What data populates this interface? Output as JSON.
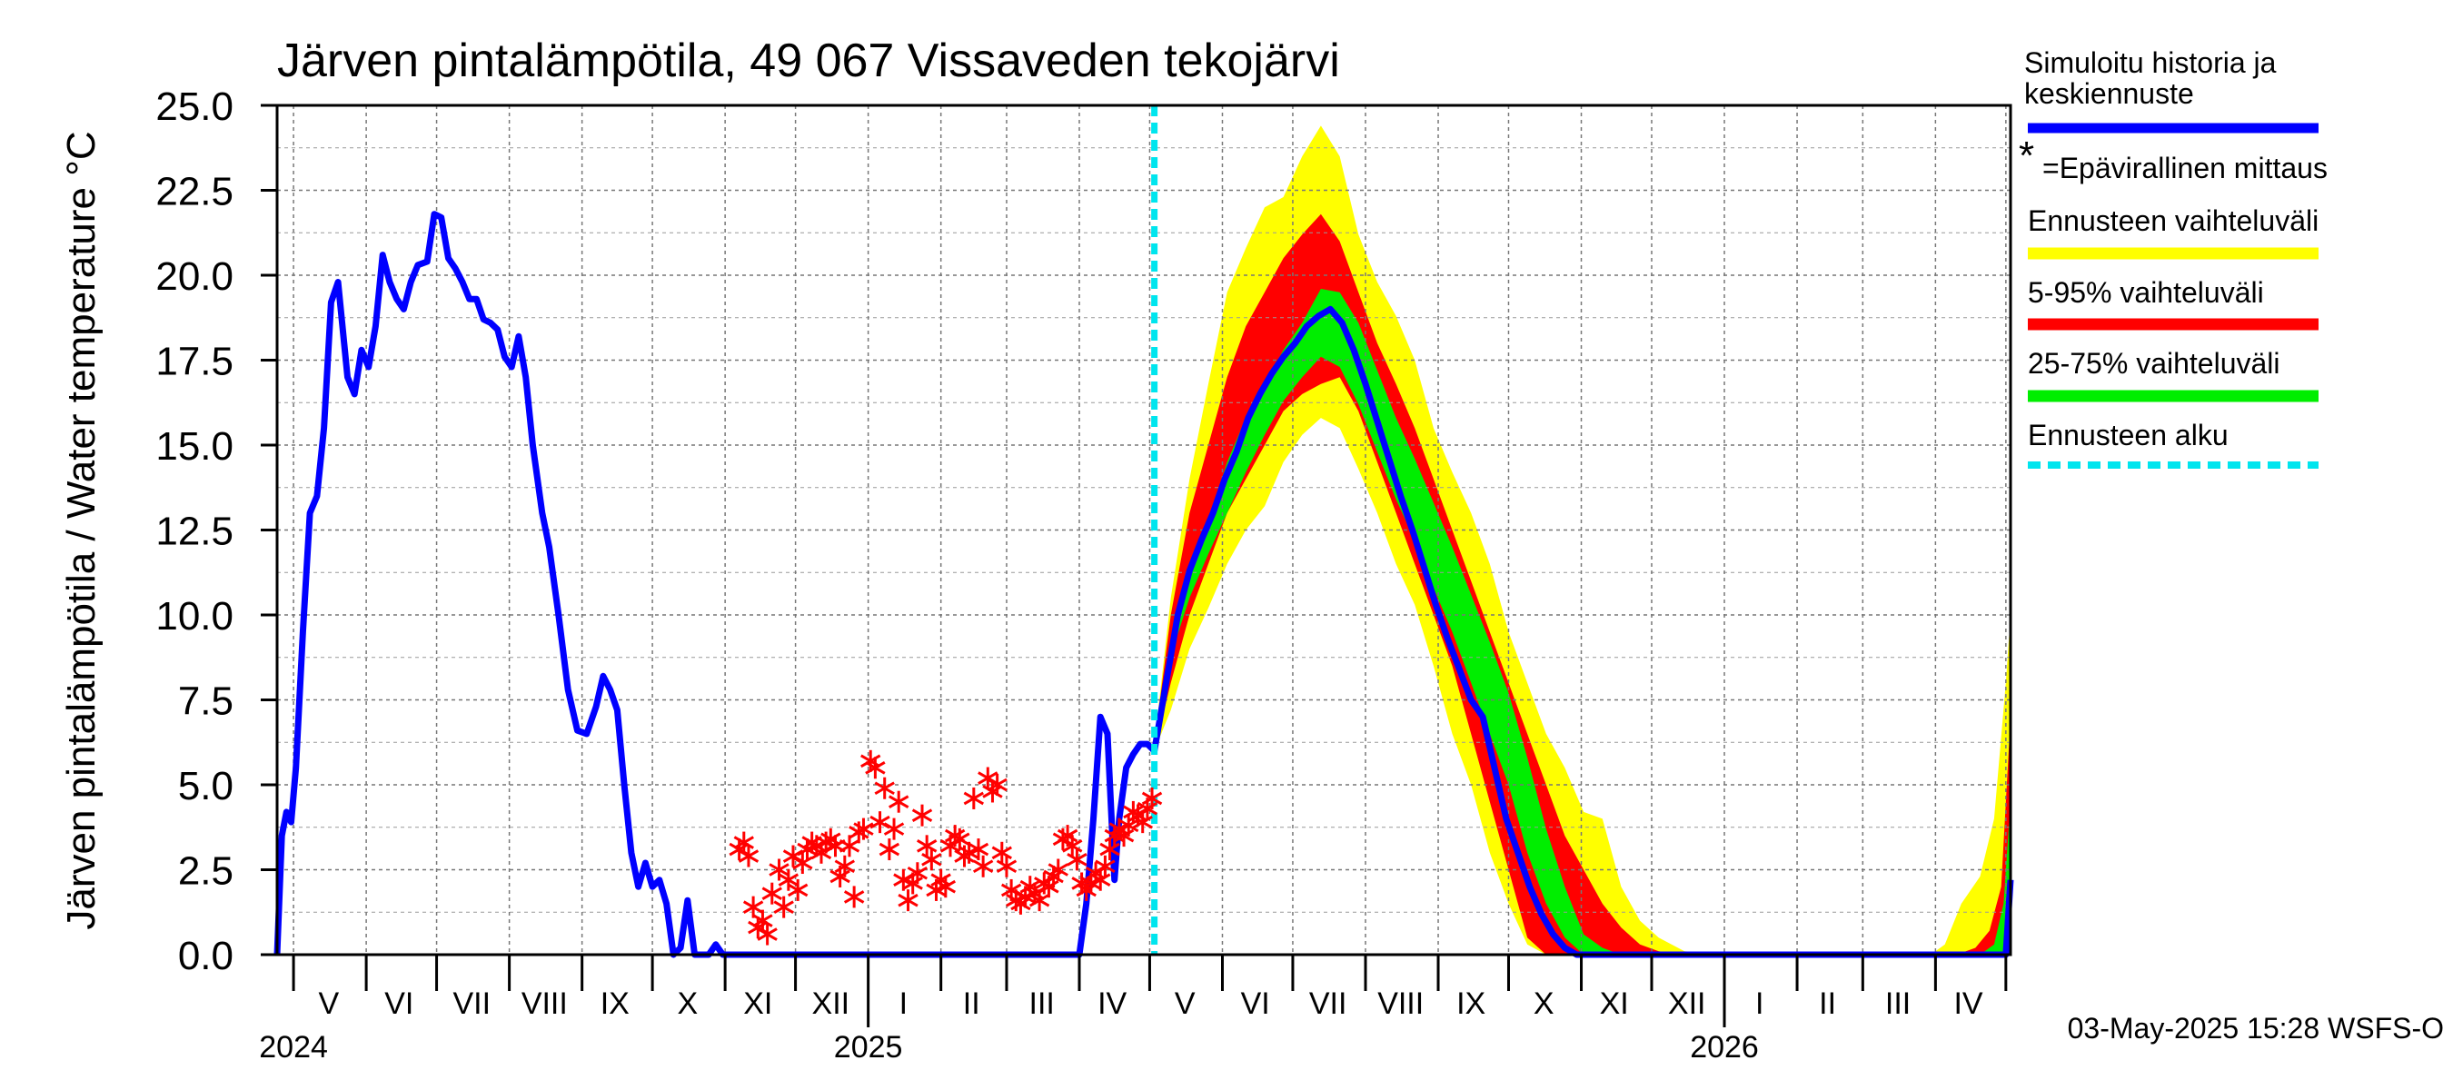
{
  "chart_data": {
    "type": "area",
    "title": "Järven pintalämpötila, 49 067 Vissaveden tekojärvi",
    "ylabel": "Järven pintalämpötila / Water temperature °C",
    "ylim": [
      0,
      25
    ],
    "yticks": [
      "0.0",
      "2.5",
      "5.0",
      "7.5",
      "10.0",
      "12.5",
      "15.0",
      "17.5",
      "20.0",
      "22.5",
      "25.0"
    ],
    "x_range": [
      "2024-04-24",
      "2026-05-03"
    ],
    "month_labels": [
      {
        "label": "V",
        "date": "2024-05-16"
      },
      {
        "label": "VI",
        "date": "2024-06-15"
      },
      {
        "label": "VII",
        "date": "2024-07-16"
      },
      {
        "label": "VIII",
        "date": "2024-08-16"
      },
      {
        "label": "IX",
        "date": "2024-09-15"
      },
      {
        "label": "X",
        "date": "2024-10-16"
      },
      {
        "label": "XI",
        "date": "2024-11-15"
      },
      {
        "label": "XII",
        "date": "2024-12-16"
      },
      {
        "label": "I",
        "date": "2025-01-16"
      },
      {
        "label": "II",
        "date": "2025-02-14"
      },
      {
        "label": "III",
        "date": "2025-03-16"
      },
      {
        "label": "IV",
        "date": "2025-04-15"
      },
      {
        "label": "V",
        "date": "2025-05-16"
      },
      {
        "label": "VI",
        "date": "2025-06-15"
      },
      {
        "label": "VII",
        "date": "2025-07-16"
      },
      {
        "label": "VIII",
        "date": "2025-08-16"
      },
      {
        "label": "IX",
        "date": "2025-09-15"
      },
      {
        "label": "X",
        "date": "2025-10-16"
      },
      {
        "label": "XI",
        "date": "2025-11-15"
      },
      {
        "label": "XII",
        "date": "2025-12-16"
      },
      {
        "label": "I",
        "date": "2026-01-16"
      },
      {
        "label": "II",
        "date": "2026-02-14"
      },
      {
        "label": "III",
        "date": "2026-03-16"
      },
      {
        "label": "IV",
        "date": "2026-04-15"
      }
    ],
    "year_labels": [
      {
        "label": "2024",
        "date": "2024-05-01"
      },
      {
        "label": "2025",
        "date": "2025-01-01"
      },
      {
        "label": "2026",
        "date": "2026-01-01"
      }
    ],
    "forecast_start": "2025-05-03",
    "grid": true,
    "legend_position": "right",
    "legend": {
      "history": "Simuloitu historia ja keskiennuste",
      "measured": "=Epävirallinen mittaus",
      "full_range": "Ennusteen vaihteluväli",
      "p5_95": "5-95% vaihteluväli",
      "p25_75": "25-75% vaihteluväli",
      "forecast_start": "Ennusteen alku"
    },
    "colors": {
      "history": "#0000ff",
      "measured": "#ff0000",
      "full_range": "#ffff00",
      "p5_95": "#ff0000",
      "p25_75": "#00ee00",
      "forecast_start": "#00e5ee"
    },
    "footer": "03-May-2025 15:28 WSFS-O",
    "series": [
      {
        "key": "history",
        "x": [
          "2024-04-24",
          "2024-04-26",
          "2024-04-28",
          "2024-04-30",
          "2024-05-02",
          "2024-05-05",
          "2024-05-08",
          "2024-05-11",
          "2024-05-14",
          "2024-05-17",
          "2024-05-20",
          "2024-05-24",
          "2024-05-27",
          "2024-05-30",
          "2024-06-02",
          "2024-06-05",
          "2024-06-08",
          "2024-06-11",
          "2024-06-14",
          "2024-06-17",
          "2024-06-20",
          "2024-06-23",
          "2024-06-27",
          "2024-06-30",
          "2024-07-03",
          "2024-07-06",
          "2024-07-09",
          "2024-07-12",
          "2024-07-15",
          "2024-07-18",
          "2024-07-21",
          "2024-07-24",
          "2024-07-27",
          "2024-07-30",
          "2024-08-02",
          "2024-08-05",
          "2024-08-08",
          "2024-08-11",
          "2024-08-15",
          "2024-08-18",
          "2024-08-22",
          "2024-08-26",
          "2024-08-30",
          "2024-09-03",
          "2024-09-07",
          "2024-09-10",
          "2024-09-13",
          "2024-09-16",
          "2024-09-19",
          "2024-09-22",
          "2024-09-25",
          "2024-09-28",
          "2024-10-01",
          "2024-10-04",
          "2024-10-07",
          "2024-10-10",
          "2024-10-13",
          "2024-10-16",
          "2024-10-19",
          "2024-10-22",
          "2024-10-25",
          "2024-10-28",
          "2024-10-31",
          "2024-11-03",
          "2024-11-06",
          "2024-11-08",
          "2024-11-11",
          "2024-11-14",
          "2024-11-17",
          "2024-11-20",
          "2024-11-23",
          "2024-11-26",
          "2024-12-01",
          "2024-12-05",
          "2024-12-09",
          "2024-12-12",
          "2024-12-16",
          "2024-12-20",
          "2024-12-25",
          "2025-01-01",
          "2025-01-05",
          "2025-01-10",
          "2025-01-20",
          "2025-02-15",
          "2025-03-15",
          "2025-04-01",
          "2025-04-04",
          "2025-04-07",
          "2025-04-10",
          "2025-04-13",
          "2025-04-16",
          "2025-04-18",
          "2025-04-21",
          "2025-04-24",
          "2025-04-27",
          "2025-04-30",
          "2025-05-03"
        ],
        "y": [
          0.0,
          3.5,
          4.2,
          3.9,
          5.5,
          9.5,
          13.0,
          13.5,
          15.5,
          19.2,
          19.8,
          17.0,
          16.5,
          17.8,
          17.3,
          18.5,
          20.6,
          19.8,
          19.3,
          19.0,
          19.8,
          20.3,
          20.4,
          21.8,
          21.7,
          20.5,
          20.2,
          19.8,
          19.3,
          19.3,
          18.7,
          18.6,
          18.4,
          17.6,
          17.3,
          18.2,
          17.0,
          15.0,
          13.0,
          12.0,
          10.0,
          7.8,
          6.6,
          6.5,
          7.3,
          8.2,
          7.8,
          7.2,
          5.0,
          3.0,
          2.0,
          2.7,
          2.0,
          2.2,
          1.5,
          0.0,
          0.2,
          1.6,
          0.0,
          0.0,
          0.0,
          0.3,
          0.0,
          0.0,
          0.0,
          0.0,
          0.0,
          0.0,
          0.0,
          0.0,
          0.0,
          0.0,
          0.0,
          0.0,
          0.0,
          0.0,
          0.0,
          0.0,
          0.0,
          0.0,
          0.0,
          0.0,
          0.0,
          0.0,
          0.0,
          0.0,
          1.5,
          4.0,
          7.0,
          6.5,
          2.2,
          4.0,
          5.5,
          5.9,
          6.2,
          6.2,
          6.0
        ]
      },
      {
        "key": "median",
        "x": [
          "2025-05-03",
          "2025-05-08",
          "2025-05-13",
          "2025-05-18",
          "2025-05-23",
          "2025-05-28",
          "2025-06-02",
          "2025-06-07",
          "2025-06-12",
          "2025-06-17",
          "2025-06-22",
          "2025-06-27",
          "2025-07-02",
          "2025-07-07",
          "2025-07-12",
          "2025-07-17",
          "2025-07-22",
          "2025-07-27",
          "2025-08-01",
          "2025-08-06",
          "2025-08-11",
          "2025-08-16",
          "2025-08-21",
          "2025-08-26",
          "2025-08-31",
          "2025-09-05",
          "2025-09-10",
          "2025-09-15",
          "2025-09-20",
          "2025-09-25",
          "2025-09-30",
          "2025-10-05",
          "2025-10-10",
          "2025-10-15",
          "2025-10-20",
          "2025-10-25",
          "2025-10-30",
          "2025-11-05",
          "2025-11-10",
          "2025-11-20",
          "2025-12-01",
          "2026-01-01",
          "2026-02-01",
          "2026-03-01",
          "2026-04-01",
          "2026-04-15",
          "2026-04-25",
          "2026-05-01",
          "2026-05-03"
        ],
        "y": [
          6.0,
          8.0,
          10.0,
          11.3,
          12.2,
          13.0,
          14.0,
          14.8,
          15.8,
          16.5,
          17.1,
          17.6,
          18.0,
          18.5,
          18.8,
          19.0,
          18.6,
          17.8,
          16.8,
          15.7,
          14.6,
          13.5,
          12.5,
          11.4,
          10.3,
          9.3,
          8.4,
          7.5,
          7.0,
          5.5,
          4.0,
          3.0,
          2.0,
          1.2,
          0.6,
          0.2,
          0.0,
          0.0,
          0.0,
          0.0,
          0.0,
          0.0,
          0.0,
          0.0,
          0.0,
          0.0,
          0.0,
          0.0,
          2.2
        ]
      }
    ],
    "bands": [
      {
        "key": "full_range",
        "x": [
          "2025-05-03",
          "2025-05-10",
          "2025-05-18",
          "2025-05-26",
          "2025-06-03",
          "2025-06-11",
          "2025-06-19",
          "2025-06-27",
          "2025-07-05",
          "2025-07-13",
          "2025-07-21",
          "2025-07-29",
          "2025-08-06",
          "2025-08-14",
          "2025-08-22",
          "2025-08-30",
          "2025-09-07",
          "2025-09-15",
          "2025-09-23",
          "2025-10-01",
          "2025-10-09",
          "2025-10-17",
          "2025-10-25",
          "2025-11-02",
          "2025-11-10",
          "2025-11-18",
          "2025-11-26",
          "2025-12-04",
          "2025-12-15",
          "2026-01-01",
          "2026-02-15",
          "2026-03-30",
          "2026-04-05",
          "2026-04-12",
          "2026-04-20",
          "2026-04-26",
          "2026-05-01",
          "2026-05-03"
        ],
        "low": [
          6.0,
          7.2,
          9.0,
          10.2,
          11.5,
          12.5,
          13.2,
          14.5,
          15.3,
          15.8,
          15.5,
          14.3,
          13.0,
          11.5,
          10.3,
          8.5,
          6.5,
          5.0,
          3.0,
          1.5,
          0.3,
          0.0,
          0.0,
          0.0,
          0.0,
          0.0,
          0.0,
          0.0,
          0.0,
          0.0,
          0.0,
          0.0,
          0.0,
          0.0,
          0.0,
          0.0,
          0.0,
          0.0
        ],
        "high": [
          6.2,
          10.5,
          14.0,
          16.8,
          19.5,
          20.8,
          22.0,
          22.3,
          23.5,
          24.4,
          23.5,
          21.2,
          19.8,
          18.8,
          17.5,
          15.5,
          14.2,
          13.0,
          11.5,
          9.5,
          8.0,
          6.5,
          5.5,
          4.2,
          4.0,
          2.0,
          1.0,
          0.5,
          0.1,
          0.0,
          0.0,
          0.0,
          0.3,
          1.5,
          2.3,
          4.0,
          8.0,
          10.0
        ]
      },
      {
        "key": "p5_95",
        "x": [
          "2025-05-03",
          "2025-05-10",
          "2025-05-18",
          "2025-05-26",
          "2025-06-03",
          "2025-06-11",
          "2025-06-19",
          "2025-06-27",
          "2025-07-05",
          "2025-07-13",
          "2025-07-21",
          "2025-07-29",
          "2025-08-06",
          "2025-08-14",
          "2025-08-22",
          "2025-08-30",
          "2025-09-07",
          "2025-09-15",
          "2025-09-23",
          "2025-10-01",
          "2025-10-09",
          "2025-10-17",
          "2025-10-25",
          "2025-11-02",
          "2025-11-10",
          "2025-11-18",
          "2025-11-26",
          "2025-12-04",
          "2025-12-15",
          "2026-01-01",
          "2026-02-15",
          "2026-04-10",
          "2026-04-18",
          "2026-04-24",
          "2026-04-29",
          "2026-05-03"
        ],
        "low": [
          6.0,
          8.0,
          10.0,
          11.5,
          13.0,
          14.0,
          15.0,
          16.0,
          16.5,
          16.8,
          17.0,
          16.0,
          14.5,
          13.0,
          11.5,
          10.0,
          8.5,
          6.5,
          4.5,
          2.5,
          0.5,
          0.0,
          0.0,
          0.0,
          0.0,
          0.0,
          0.0,
          0.0,
          0.0,
          0.0,
          0.0,
          0.0,
          0.0,
          0.0,
          0.0,
          0.0
        ],
        "high": [
          6.2,
          10.0,
          13.0,
          15.0,
          17.0,
          18.5,
          19.5,
          20.5,
          21.2,
          21.8,
          21.0,
          19.5,
          18.0,
          16.8,
          15.5,
          14.0,
          12.5,
          11.0,
          9.5,
          8.0,
          6.5,
          5.0,
          3.5,
          2.5,
          1.5,
          0.8,
          0.3,
          0.1,
          0.0,
          0.0,
          0.0,
          0.0,
          0.2,
          0.7,
          2.0,
          7.0
        ]
      },
      {
        "key": "p25_75",
        "x": [
          "2025-05-03",
          "2025-05-10",
          "2025-05-18",
          "2025-05-26",
          "2025-06-03",
          "2025-06-11",
          "2025-06-19",
          "2025-06-27",
          "2025-07-05",
          "2025-07-13",
          "2025-07-21",
          "2025-07-29",
          "2025-08-06",
          "2025-08-14",
          "2025-08-22",
          "2025-08-30",
          "2025-09-07",
          "2025-09-15",
          "2025-09-23",
          "2025-10-01",
          "2025-10-09",
          "2025-10-17",
          "2025-10-25",
          "2025-11-02",
          "2025-11-10",
          "2025-11-18",
          "2025-11-26",
          "2025-12-04",
          "2026-01-01",
          "2026-04-20",
          "2026-04-26",
          "2026-04-30",
          "2026-05-03"
        ],
        "low": [
          6.0,
          8.8,
          10.5,
          11.8,
          13.0,
          14.2,
          15.3,
          16.3,
          17.0,
          17.6,
          17.3,
          16.2,
          14.8,
          13.4,
          12.2,
          10.8,
          9.5,
          8.0,
          6.5,
          5.0,
          3.0,
          1.5,
          0.5,
          0.0,
          0.0,
          0.0,
          0.0,
          0.0,
          0.0,
          0.0,
          0.0,
          0.0,
          0.0
        ],
        "high": [
          6.1,
          9.3,
          11.5,
          12.8,
          14.5,
          15.8,
          16.8,
          17.8,
          18.6,
          19.6,
          19.5,
          18.6,
          17.2,
          15.8,
          14.6,
          13.3,
          12.0,
          10.6,
          9.2,
          7.7,
          5.8,
          3.7,
          2.0,
          0.6,
          0.2,
          0.0,
          0.0,
          0.0,
          0.0,
          0.0,
          0.3,
          1.5,
          4.5
        ]
      }
    ],
    "measurements": {
      "key": "measured",
      "x": [
        "2024-11-07",
        "2024-11-09",
        "2024-11-11",
        "2024-11-13",
        "2024-11-15",
        "2024-11-17",
        "2024-11-19",
        "2024-11-21",
        "2024-11-24",
        "2024-11-26",
        "2024-11-28",
        "2024-11-30",
        "2024-12-02",
        "2024-12-04",
        "2024-12-06",
        "2024-12-08",
        "2024-12-10",
        "2024-12-12",
        "2024-12-14",
        "2024-12-16",
        "2024-12-18",
        "2024-12-20",
        "2024-12-22",
        "2024-12-24",
        "2024-12-26",
        "2024-12-28",
        "2024-12-30",
        "2025-01-02",
        "2025-01-04",
        "2025-01-06",
        "2025-01-08",
        "2025-01-10",
        "2025-01-12",
        "2025-01-14",
        "2025-01-16",
        "2025-01-18",
        "2025-01-20",
        "2025-01-22",
        "2025-01-24",
        "2025-01-26",
        "2025-01-28",
        "2025-01-30",
        "2025-02-01",
        "2025-02-03",
        "2025-02-05",
        "2025-02-07",
        "2025-02-09",
        "2025-02-11",
        "2025-02-13",
        "2025-02-15",
        "2025-02-17",
        "2025-02-19",
        "2025-02-21",
        "2025-02-23",
        "2025-02-25",
        "2025-02-27",
        "2025-03-01",
        "2025-03-03",
        "2025-03-05",
        "2025-03-07",
        "2025-03-09",
        "2025-03-11",
        "2025-03-13",
        "2025-03-15",
        "2025-03-17",
        "2025-03-19",
        "2025-03-21",
        "2025-03-23",
        "2025-03-25",
        "2025-03-27",
        "2025-03-29",
        "2025-03-31",
        "2025-04-02",
        "2025-04-04",
        "2025-04-06",
        "2025-04-08",
        "2025-04-10",
        "2025-04-12",
        "2025-04-14",
        "2025-04-16",
        "2025-04-18",
        "2025-04-20",
        "2025-04-22",
        "2025-04-24",
        "2025-04-26",
        "2025-04-28",
        "2025-04-30",
        "2025-05-02"
      ],
      "y": [
        3.1,
        3.3,
        2.9,
        1.4,
        0.8,
        1.0,
        0.6,
        1.8,
        2.5,
        1.4,
        2.2,
        2.9,
        1.9,
        2.7,
        3.1,
        3.3,
        3.2,
        3.0,
        3.3,
        3.4,
        3.2,
        2.3,
        2.6,
        3.2,
        1.7,
        3.6,
        3.7,
        5.7,
        5.5,
        3.9,
        4.9,
        3.1,
        3.7,
        4.5,
        2.2,
        1.6,
        2.1,
        2.4,
        4.1,
        3.2,
        2.8,
        1.9,
        2.2,
        2.0,
        3.2,
        3.5,
        3.4,
        2.9,
        3.0,
        4.6,
        3.1,
        2.6,
        5.2,
        4.8,
        5.0,
        3.0,
        2.6,
        1.9,
        1.6,
        1.5,
        1.7,
        2.0,
        1.8,
        1.6,
        2.1,
        2.0,
        2.3,
        2.5,
        3.4,
        3.5,
        3.2,
        2.8,
        2.1,
        1.9,
        2.1,
        2.4,
        2.2,
        2.6,
        3.1,
        3.5,
        3.7,
        3.5,
        3.8,
        4.2,
        4.1,
        3.9,
        4.3,
        4.6
      ]
    }
  }
}
